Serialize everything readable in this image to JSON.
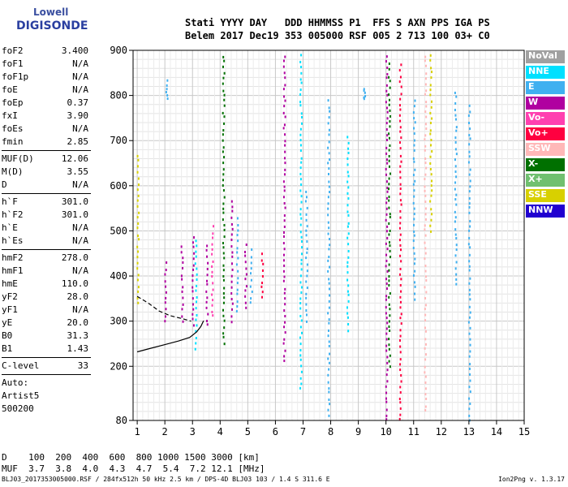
{
  "logo": {
    "line1": "Lowell",
    "line2": "DIGISONDE"
  },
  "header": {
    "labels": "Stati YYYY DAY   DDD HHMMSS P1  FFS S AXN PPS IGA PS",
    "values": "Belem 2017 Dec19 353 005000 RSF 005 2 713 100 03+ C0"
  },
  "params_a": [
    {
      "name": "foF2",
      "value": "3.400"
    },
    {
      "name": "foF1",
      "value": "N/A"
    },
    {
      "name": "foF1p",
      "value": "N/A"
    },
    {
      "name": "foE",
      "value": "N/A"
    },
    {
      "name": "foEp",
      "value": "0.37"
    },
    {
      "name": "fxI",
      "value": "3.90"
    },
    {
      "name": "foEs",
      "value": "N/A"
    },
    {
      "name": "fmin",
      "value": "2.85"
    }
  ],
  "params_b": [
    {
      "name": "MUF(D)",
      "value": "12.06"
    },
    {
      "name": "M(D)",
      "value": "3.55"
    },
    {
      "name": "D",
      "value": "N/A"
    }
  ],
  "params_c": [
    {
      "name": "h`F",
      "value": "301.0"
    },
    {
      "name": "h`F2",
      "value": "301.0"
    },
    {
      "name": "h`E",
      "value": "N/A"
    },
    {
      "name": "h`Es",
      "value": "N/A"
    }
  ],
  "params_d": [
    {
      "name": "hmF2",
      "value": "278.0"
    },
    {
      "name": "hmF1",
      "value": "N/A"
    },
    {
      "name": "hmE",
      "value": "110.0"
    },
    {
      "name": "yF2",
      "value": "28.0"
    },
    {
      "name": "yF1",
      "value": "N/A"
    },
    {
      "name": "yE",
      "value": "20.0"
    },
    {
      "name": "B0",
      "value": "31.3"
    },
    {
      "name": "B1",
      "value": "1.43"
    }
  ],
  "clevel": {
    "name": "C-level",
    "value": "33"
  },
  "autoscale": {
    "line1": "Auto:",
    "line2": "Artist5",
    "line3": "500200"
  },
  "legend": [
    {
      "label": "NoVal",
      "color": "#a0a0a0"
    },
    {
      "label": "NNE",
      "color": "#00e0ff"
    },
    {
      "label": "E",
      "color": "#40b0f0"
    },
    {
      "label": "W",
      "color": "#b000a0"
    },
    {
      "label": "Vo-",
      "color": "#ff40b0"
    },
    {
      "label": "Vo+",
      "color": "#ff0040"
    },
    {
      "label": "SSW",
      "color": "#ffb8b8"
    },
    {
      "label": "X-",
      "color": "#007000"
    },
    {
      "label": "X+",
      "color": "#70c070"
    },
    {
      "label": "SSE",
      "color": "#d8d000"
    },
    {
      "label": "NNW",
      "color": "#2000d0"
    }
  ],
  "freq_table": {
    "line1": "D    100  200  400  600  800 1000 1500 3000 [km]",
    "line2": "MUF  3.7  3.8  4.0  4.3  4.7  5.4  7.2 12.1 [MHz]"
  },
  "footer": "BLJ03_2017353005000.RSF / 284fx512h 50 kHz 2.5 km / DPS-4D BLJ03 103 / 1.4 S 311.6 E",
  "version": "Ion2Png v. 1.3.17",
  "chart_data": {
    "type": "scatter",
    "x_ticks": [
      1,
      2,
      3,
      4,
      5,
      6,
      7,
      8,
      9,
      10,
      11,
      12,
      13,
      14,
      15
    ],
    "y_ticks": [
      80,
      200,
      300,
      400,
      500,
      600,
      700,
      800,
      900
    ],
    "xlim": [
      0.85,
      15
    ],
    "ylim": [
      80,
      900
    ],
    "grid": true,
    "traces": [
      {
        "name": "f-trace",
        "points": [
          [
            1.0,
            232
          ],
          [
            1.5,
            240
          ],
          [
            2.0,
            248
          ],
          [
            2.5,
            256
          ],
          [
            2.9,
            264
          ],
          [
            3.15,
            276
          ],
          [
            3.3,
            288
          ],
          [
            3.4,
            301
          ]
        ]
      },
      {
        "name": "o-trace",
        "points": [
          [
            1.0,
            355
          ],
          [
            1.4,
            340
          ],
          [
            1.8,
            322
          ],
          [
            2.2,
            312
          ],
          [
            2.6,
            306
          ],
          [
            2.95,
            300
          ]
        ]
      }
    ],
    "echo_columns": [
      {
        "x": 1.0,
        "y0": 340,
        "y1": 680,
        "series": "SSE"
      },
      {
        "x": 2.0,
        "y0": 300,
        "y1": 440,
        "series": "W"
      },
      {
        "x": 2.05,
        "y0": 790,
        "y1": 840,
        "series": "E"
      },
      {
        "x": 2.6,
        "y0": 300,
        "y1": 480,
        "series": "W"
      },
      {
        "x": 3.0,
        "y0": 290,
        "y1": 500,
        "series": "W"
      },
      {
        "x": 3.1,
        "y0": 240,
        "y1": 490,
        "series": "NNE"
      },
      {
        "x": 3.5,
        "y0": 290,
        "y1": 480,
        "series": "W"
      },
      {
        "x": 3.7,
        "y0": 310,
        "y1": 520,
        "series": "Vo-"
      },
      {
        "x": 4.1,
        "y0": 250,
        "y1": 900,
        "series": "X-"
      },
      {
        "x": 4.4,
        "y0": 300,
        "y1": 580,
        "series": "W"
      },
      {
        "x": 4.6,
        "y0": 320,
        "y1": 540,
        "series": "E"
      },
      {
        "x": 4.9,
        "y0": 330,
        "y1": 480,
        "series": "W"
      },
      {
        "x": 5.1,
        "y0": 340,
        "y1": 470,
        "series": "E"
      },
      {
        "x": 5.5,
        "y0": 350,
        "y1": 460,
        "series": "Vo+"
      },
      {
        "x": 6.3,
        "y0": 210,
        "y1": 900,
        "series": "W"
      },
      {
        "x": 6.9,
        "y0": 150,
        "y1": 900,
        "series": "NNE"
      },
      {
        "x": 7.1,
        "y0": 300,
        "y1": 600,
        "series": "E"
      },
      {
        "x": 7.9,
        "y0": 90,
        "y1": 800,
        "series": "E"
      },
      {
        "x": 8.6,
        "y0": 280,
        "y1": 720,
        "series": "NNE"
      },
      {
        "x": 9.2,
        "y0": 790,
        "y1": 820,
        "series": "E"
      },
      {
        "x": 10.0,
        "y0": 80,
        "y1": 900,
        "series": "W"
      },
      {
        "x": 10.1,
        "y0": 200,
        "y1": 880,
        "series": "X-"
      },
      {
        "x": 10.5,
        "y0": 80,
        "y1": 880,
        "series": "Vo+"
      },
      {
        "x": 11.0,
        "y0": 350,
        "y1": 800,
        "series": "E"
      },
      {
        "x": 11.4,
        "y0": 100,
        "y1": 900,
        "series": "SSW"
      },
      {
        "x": 11.6,
        "y0": 500,
        "y1": 900,
        "series": "SSE"
      },
      {
        "x": 12.5,
        "y0": 380,
        "y1": 820,
        "series": "E"
      },
      {
        "x": 13.0,
        "y0": 80,
        "y1": 790,
        "series": "E"
      }
    ]
  }
}
